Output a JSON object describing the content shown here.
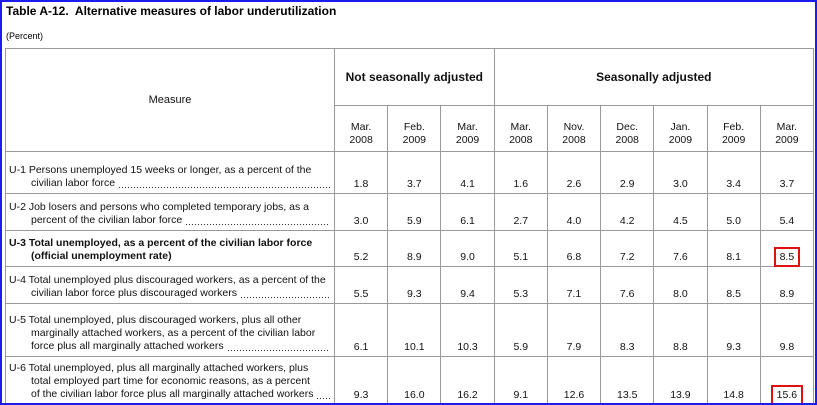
{
  "header": {
    "title": "Table A-12.  Alternative measures of labor underutilization",
    "subtitle": "(Percent)"
  },
  "table": {
    "measure_header": "Measure",
    "groups": [
      {
        "label": "Not seasonally adjusted",
        "span": 3
      },
      {
        "label": "Seasonally adjusted",
        "span": 6
      }
    ],
    "periods": [
      {
        "month": "Mar.",
        "year": "2008"
      },
      {
        "month": "Feb.",
        "year": "2009"
      },
      {
        "month": "Mar.",
        "year": "2009"
      },
      {
        "month": "Mar.",
        "year": "2008"
      },
      {
        "month": "Nov.",
        "year": "2008"
      },
      {
        "month": "Dec.",
        "year": "2008"
      },
      {
        "month": "Jan.",
        "year": "2009"
      },
      {
        "month": "Feb.",
        "year": "2009"
      },
      {
        "month": "Mar.",
        "year": "2009"
      }
    ],
    "rows": [
      {
        "lines": [
          "U-1 Persons unemployed 15 weeks or longer, as a percent of the",
          "civilian labor force"
        ],
        "bold": false,
        "values": [
          "1.8",
          "3.7",
          "4.1",
          "1.6",
          "2.6",
          "2.9",
          "3.0",
          "3.4",
          "3.7"
        ]
      },
      {
        "lines": [
          "U-2 Job losers and persons who completed temporary jobs, as a",
          "percent of the civilian labor force"
        ],
        "bold": false,
        "values": [
          "3.0",
          "5.9",
          "6.1",
          "2.7",
          "4.0",
          "4.2",
          "4.5",
          "5.0",
          "5.4"
        ]
      },
      {
        "lines": [
          "U-3 Total unemployed, as a percent of the civilian labor force",
          "(official unemployment rate)"
        ],
        "bold": true,
        "values": [
          "5.2",
          "8.9",
          "9.0",
          "5.1",
          "6.8",
          "7.2",
          "7.6",
          "8.1",
          "8.5"
        ]
      },
      {
        "lines": [
          "U-4 Total unemployed plus discouraged workers, as a percent of the",
          "civilian labor force plus discouraged workers"
        ],
        "bold": false,
        "values": [
          "5.5",
          "9.3",
          "9.4",
          "5.3",
          "7.1",
          "7.6",
          "8.0",
          "8.5",
          "8.9"
        ]
      },
      {
        "lines": [
          "U-5 Total unemployed, plus discouraged workers, plus all other",
          "marginally attached workers, as a percent of the civilian labor",
          "force plus all marginally attached workers"
        ],
        "bold": false,
        "values": [
          "6.1",
          "10.1",
          "10.3",
          "5.9",
          "7.9",
          "8.3",
          "8.8",
          "9.3",
          "9.8"
        ]
      },
      {
        "lines": [
          "U-6 Total unemployed, plus all marginally attached workers, plus",
          "total employed part time for economic reasons, as a percent",
          "of the civilian labor force plus all marginally attached workers"
        ],
        "bold": false,
        "values": [
          "9.3",
          "16.0",
          "16.2",
          "9.1",
          "12.6",
          "13.5",
          "13.9",
          "14.8",
          "15.6"
        ]
      }
    ]
  }
}
